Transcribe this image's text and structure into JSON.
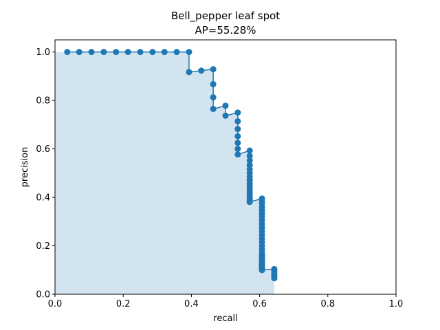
{
  "chart_data": {
    "type": "line",
    "title": "Bell_pepper leaf spot",
    "subtitle": "AP=55.28%",
    "xlabel": "recall",
    "ylabel": "precision",
    "xlim": [
      0.0,
      1.0
    ],
    "ylim": [
      0.0,
      1.05
    ],
    "xticks": [
      0.0,
      0.2,
      0.4,
      0.6,
      0.8,
      1.0
    ],
    "yticks": [
      0.0,
      0.2,
      0.4,
      0.6,
      0.8,
      1.0
    ],
    "xtick_labels": [
      "0.0",
      "0.2",
      "0.4",
      "0.6",
      "0.8",
      "1.0"
    ],
    "ytick_labels": [
      "0.0",
      "0.2",
      "0.4",
      "0.6",
      "0.8",
      "1.0"
    ],
    "grid": false,
    "fill_under_curve": true,
    "colors": {
      "line": "#1f77b4",
      "fill": "#1f77b4"
    },
    "series": [
      {
        "x": [
          0.036,
          0.071,
          0.107,
          0.143,
          0.179,
          0.214,
          0.25,
          0.286,
          0.321,
          0.357,
          0.393,
          0.393,
          0.429,
          0.464,
          0.464,
          0.464,
          0.464,
          0.5,
          0.5,
          0.536,
          0.536,
          0.536,
          0.536,
          0.536,
          0.536,
          0.536,
          0.571,
          0.571,
          0.571,
          0.571,
          0.571,
          0.571,
          0.571,
          0.571,
          0.571,
          0.571,
          0.571,
          0.571,
          0.571,
          0.571,
          0.571,
          0.571,
          0.571,
          0.607,
          0.607,
          0.607,
          0.607,
          0.607,
          0.607,
          0.607,
          0.607,
          0.607,
          0.607,
          0.607,
          0.607,
          0.607,
          0.607,
          0.607,
          0.607,
          0.607,
          0.607,
          0.607,
          0.607,
          0.607,
          0.607,
          0.607,
          0.607,
          0.607,
          0.607,
          0.607,
          0.607,
          0.607,
          0.607,
          0.607,
          0.607,
          0.607,
          0.607,
          0.643,
          0.643,
          0.643,
          0.643,
          0.643,
          0.643
        ],
        "y": [
          1.0,
          1.0,
          1.0,
          1.0,
          1.0,
          1.0,
          1.0,
          1.0,
          1.0,
          1.0,
          1.0,
          0.917,
          0.923,
          0.929,
          0.867,
          0.813,
          0.765,
          0.778,
          0.737,
          0.75,
          0.714,
          0.682,
          0.652,
          0.625,
          0.6,
          0.577,
          0.593,
          0.571,
          0.552,
          0.533,
          0.516,
          0.5,
          0.485,
          0.471,
          0.457,
          0.444,
          0.432,
          0.421,
          0.41,
          0.4,
          0.39,
          0.381,
          0.381,
          0.395,
          0.386,
          0.375,
          0.36,
          0.346,
          0.333,
          0.32,
          0.305,
          0.29,
          0.275,
          0.26,
          0.245,
          0.23,
          0.215,
          0.2,
          0.185,
          0.17,
          0.16,
          0.15,
          0.14,
          0.13,
          0.125,
          0.12,
          0.115,
          0.11,
          0.105,
          0.1,
          0.11,
          0.12,
          0.13,
          0.14,
          0.15,
          0.11,
          0.1,
          0.104,
          0.095,
          0.088,
          0.08,
          0.072,
          0.066
        ]
      }
    ]
  }
}
